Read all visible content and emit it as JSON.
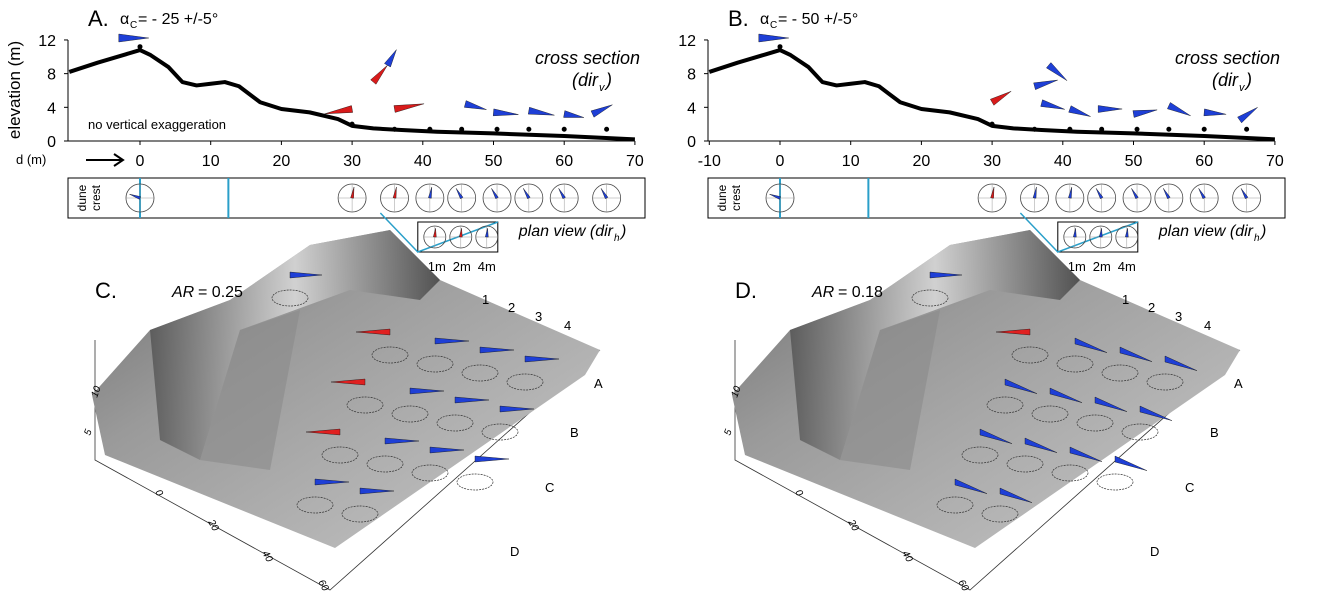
{
  "panels": [
    {
      "label": "A.",
      "alpha_symbol": "α",
      "alpha_sub": "C",
      "alpha_text": "= - 25 +/-5°",
      "y_label": "elevation (m)",
      "y_ticks": [
        0,
        4,
        8,
        12
      ],
      "x_label": "d (m)",
      "x_ticks": [
        0,
        10,
        20,
        30,
        40,
        50,
        60,
        70
      ],
      "section_title": "cross section",
      "section_dir": "(dir",
      "section_sub": "v",
      "section_close": ")",
      "note": "no vertical exaggeration",
      "crest": [
        "dune",
        "crest"
      ],
      "plan_title": "plan view (dir",
      "plan_sub": "h",
      "plan_close": ")",
      "scales": [
        "1m",
        "2m",
        "4m"
      ]
    },
    {
      "label": "B.",
      "alpha_symbol": "α",
      "alpha_sub": "C",
      "alpha_text": "= - 50 +/-5°",
      "y_label": "elevation (m)",
      "y_ticks": [
        0,
        4,
        8,
        12
      ],
      "x_ticks": [
        -10,
        0,
        10,
        20,
        30,
        40,
        50,
        60,
        70
      ],
      "section_title": "cross section",
      "section_dir": "(dir",
      "section_sub": "v",
      "section_close": ")",
      "crest": [
        "dune",
        "crest"
      ],
      "plan_title": "plan view (dir",
      "plan_sub": "h",
      "plan_close": ")",
      "scales": [
        "1m",
        "2m",
        "4m"
      ]
    }
  ],
  "surfaces": [
    {
      "label": "C.",
      "ar_label": "AR",
      "ar_value": "= 0.25",
      "columns": [
        "1",
        "2",
        "3",
        "4"
      ],
      "rows": [
        "A",
        "B",
        "C",
        "D"
      ],
      "z_ticks": [
        "10",
        "5"
      ],
      "x_ticks": [
        "0",
        "20",
        "40",
        "60"
      ]
    },
    {
      "label": "D.",
      "ar_label": "AR",
      "ar_value": "= 0.18",
      "columns": [
        "1",
        "2",
        "3",
        "4"
      ],
      "rows": [
        "A",
        "B",
        "C",
        "D"
      ],
      "z_ticks": [
        "10",
        "5"
      ],
      "x_ticks": [
        "0",
        "20",
        "40",
        "60"
      ]
    }
  ]
}
